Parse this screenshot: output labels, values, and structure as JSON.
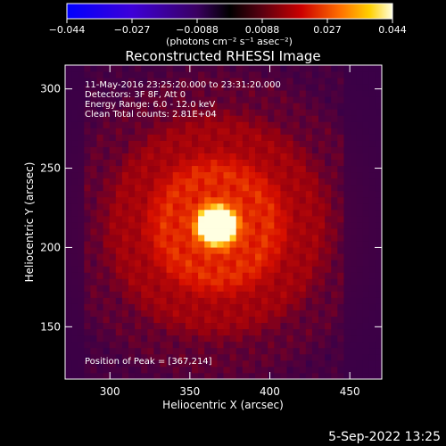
{
  "colorbar": {
    "ticks": [
      "−0.044",
      "−0.027",
      "−0.0088",
      "0.0088",
      "0.027",
      "0.044"
    ],
    "units": "(photons cm⁻² s⁻¹ asec⁻²)"
  },
  "chart_data": {
    "type": "heatmap",
    "title": "Reconstructed RHESSI Image",
    "xlabel": "Heliocentric X (arcsec)",
    "ylabel": "Heliocentric Y (arcsec)",
    "xlim": [
      272,
      470
    ],
    "ylim": [
      117,
      315
    ],
    "x_ticks": [
      300,
      350,
      400,
      450
    ],
    "y_ticks": [
      150,
      200,
      250,
      300
    ],
    "colorbar_range": [
      -0.044,
      0.044
    ],
    "colormap": "rhessi-fire",
    "peak": [
      367,
      214
    ],
    "annotations": [
      "11-May-2016 23:25:20.000 to 23:31:20.000",
      "Detectors: 3F 8F, Att 0",
      "Energy Range: 6.0 - 12.0 keV",
      "Clean     Total counts: 2.81E+04",
      "Position of Peak = [367,214]"
    ]
  },
  "footer": {
    "date": "5-Sep-2022 13:25"
  }
}
